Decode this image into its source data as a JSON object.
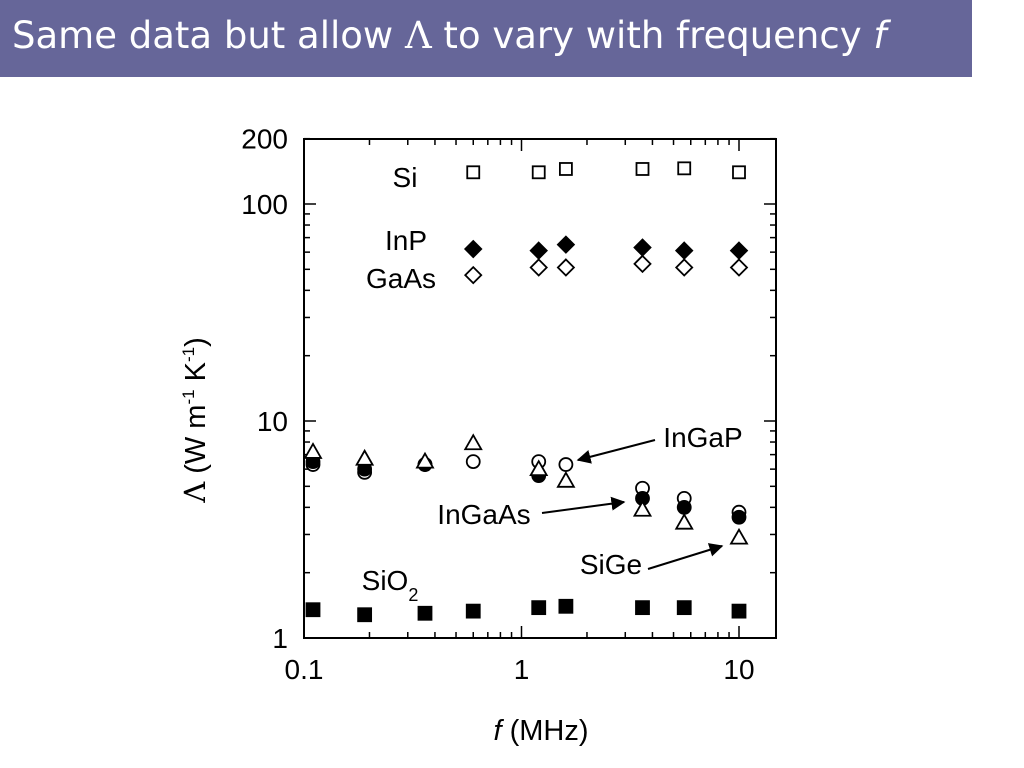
{
  "slide": {
    "title_prefix": "Same data but allow ",
    "title_symbol": "Λ",
    "title_middle": " to vary with frequency ",
    "title_italic": "f"
  },
  "colors": {
    "title_bar": "#666699",
    "title_text": "#ffffff",
    "marks": "#000000"
  },
  "chart_data": {
    "type": "scatter",
    "xscale": "log",
    "yscale": "log",
    "xlim": [
      0.1,
      14
    ],
    "ylim": [
      1,
      200
    ],
    "xlabel": {
      "italic": "f",
      "rest": " (MHz)"
    },
    "ylabel": {
      "sym": "Λ",
      "a": " (W m",
      "sup1": "-1",
      "b": " K",
      "sup2": "-1",
      "c": ")"
    },
    "xticks": [
      {
        "v": 0.1,
        "label": "0.1"
      },
      {
        "v": 1,
        "label": "1"
      },
      {
        "v": 10,
        "label": "10"
      }
    ],
    "yticks": [
      {
        "v": 1,
        "label": "1"
      },
      {
        "v": 10,
        "label": "10"
      },
      {
        "v": 100,
        "label": "100"
      },
      {
        "v": 200,
        "label": "200"
      }
    ],
    "grid": false,
    "series": [
      {
        "name": "Si",
        "marker": "open-square",
        "points": [
          [
            0.6,
            140
          ],
          [
            1.2,
            140
          ],
          [
            1.6,
            145
          ],
          [
            3.6,
            145
          ],
          [
            5.6,
            146
          ],
          [
            10,
            140
          ]
        ]
      },
      {
        "name": "InP",
        "marker": "filled-diamond",
        "points": [
          [
            0.6,
            62
          ],
          [
            1.2,
            61
          ],
          [
            1.6,
            65
          ],
          [
            3.6,
            63
          ],
          [
            5.6,
            61
          ],
          [
            10,
            61
          ]
        ]
      },
      {
        "name": "GaAs",
        "marker": "open-diamond",
        "points": [
          [
            0.6,
            47
          ],
          [
            1.2,
            51
          ],
          [
            1.6,
            51
          ],
          [
            3.6,
            53
          ],
          [
            5.6,
            51
          ],
          [
            10,
            51
          ]
        ]
      },
      {
        "name": "InGaP",
        "marker": "open-circle",
        "points": [
          [
            0.11,
            6.3
          ],
          [
            0.19,
            5.8
          ],
          [
            0.36,
            6.3
          ],
          [
            0.6,
            6.5
          ],
          [
            1.2,
            6.5
          ],
          [
            1.6,
            6.3
          ],
          [
            3.6,
            4.9
          ],
          [
            5.6,
            4.4
          ],
          [
            10,
            3.8
          ]
        ]
      },
      {
        "name": "InGaAs",
        "marker": "filled-circle",
        "points": [
          [
            0.11,
            6.5
          ],
          [
            0.19,
            6.0
          ],
          [
            0.36,
            6.3
          ],
          [
            1.2,
            5.6
          ],
          [
            3.6,
            4.4
          ],
          [
            5.6,
            4.0
          ],
          [
            10,
            3.6
          ]
        ]
      },
      {
        "name": "SiGe",
        "marker": "open-triangle",
        "points": [
          [
            0.11,
            7.2
          ],
          [
            0.19,
            6.7
          ],
          [
            0.36,
            6.5
          ],
          [
            0.6,
            7.9
          ],
          [
            1.2,
            6.0
          ],
          [
            1.6,
            5.3
          ],
          [
            3.6,
            3.9
          ],
          [
            5.6,
            3.4
          ],
          [
            10,
            2.9
          ]
        ]
      },
      {
        "name": "SiO2",
        "marker": "filled-square",
        "points": [
          [
            0.11,
            1.35
          ],
          [
            0.19,
            1.28
          ],
          [
            0.36,
            1.3
          ],
          [
            0.6,
            1.33
          ],
          [
            1.2,
            1.38
          ],
          [
            1.6,
            1.4
          ],
          [
            3.6,
            1.38
          ],
          [
            5.6,
            1.38
          ],
          [
            10,
            1.33
          ]
        ]
      }
    ],
    "annotations": [
      {
        "id": "si",
        "text": "Si"
      },
      {
        "id": "inp",
        "text": "InP"
      },
      {
        "id": "gaas",
        "text": "GaAs"
      },
      {
        "id": "ingap",
        "text": "InGaP",
        "arrow": true
      },
      {
        "id": "ingaas",
        "text": "InGaAs",
        "arrow": true
      },
      {
        "id": "sige",
        "text": "SiGe",
        "arrow": true
      },
      {
        "id": "sio2",
        "text": "SiO",
        "sub": "2"
      }
    ]
  }
}
